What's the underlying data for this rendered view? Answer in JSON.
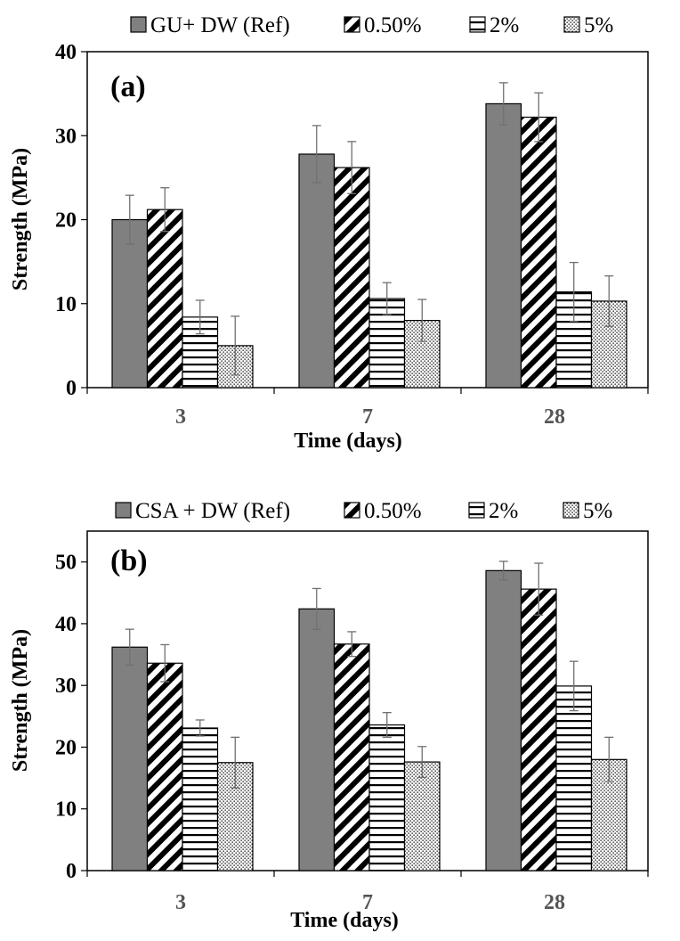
{
  "colors": {
    "ref": "#808080",
    "outline": "#000000",
    "error": "#707070"
  },
  "chart_data": [
    {
      "type": "bar",
      "panel_label": "(a)",
      "categories": [
        "3",
        "7",
        "28"
      ],
      "xlabel": "Time (days)",
      "ylabel": "Strength (MPa)",
      "ylim": [
        0,
        40
      ],
      "yticks": [
        "0",
        "10",
        "20",
        "30",
        "40"
      ],
      "legend": [
        "GU+ DW (Ref)",
        "0.50%",
        "2%",
        "5%"
      ],
      "series": [
        {
          "name": "GU+ DW (Ref)",
          "pattern": "solid",
          "values": [
            20.0,
            27.8,
            33.8
          ],
          "errors": [
            2.9,
            3.4,
            2.5
          ]
        },
        {
          "name": "0.50%",
          "pattern": "diagonal",
          "values": [
            21.2,
            26.2,
            32.2
          ],
          "errors": [
            2.6,
            3.1,
            2.9
          ]
        },
        {
          "name": "2%",
          "pattern": "horizontal",
          "values": [
            8.4,
            10.6,
            11.4
          ],
          "errors": [
            2.0,
            1.9,
            3.5
          ]
        },
        {
          "name": "5%",
          "pattern": "dots",
          "values": [
            5.0,
            8.0,
            10.3
          ],
          "errors": [
            3.5,
            2.5,
            3.0
          ]
        }
      ]
    },
    {
      "type": "bar",
      "panel_label": "(b)",
      "categories": [
        "3",
        "7",
        "28"
      ],
      "xlabel": "Time (days)",
      "ylabel": "Strength (MPa)",
      "ylim": [
        0,
        55
      ],
      "yticks": [
        "0",
        "10",
        "20",
        "30",
        "40",
        "50"
      ],
      "legend": [
        "CSA + DW (Ref)",
        "0.50%",
        "2%",
        "5%"
      ],
      "series": [
        {
          "name": "CSA + DW (Ref)",
          "pattern": "solid",
          "values": [
            36.2,
            42.4,
            48.6
          ],
          "errors": [
            2.9,
            3.3,
            1.5
          ]
        },
        {
          "name": "0.50%",
          "pattern": "diagonal",
          "values": [
            33.6,
            36.7,
            45.6
          ],
          "errors": [
            3.0,
            2.0,
            4.2
          ]
        },
        {
          "name": "2%",
          "pattern": "horizontal",
          "values": [
            23.1,
            23.6,
            29.9
          ],
          "errors": [
            1.3,
            2.0,
            4.0
          ]
        },
        {
          "name": "5%",
          "pattern": "dots",
          "values": [
            17.5,
            17.6,
            18.0
          ],
          "errors": [
            4.1,
            2.5,
            3.6
          ]
        }
      ]
    }
  ]
}
